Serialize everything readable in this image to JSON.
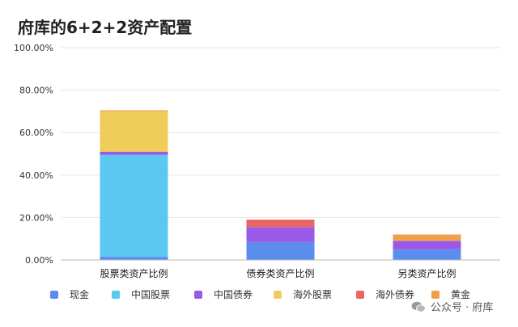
{
  "title": "府库的6+2+2资产配置",
  "watermark": "公众号 · 府库",
  "chart_data": {
    "type": "bar",
    "stacked": true,
    "categories": [
      "股票类资产比例",
      "债券类资产比例",
      "另类资产比例"
    ],
    "series": [
      {
        "name": "现金",
        "color": "#5b8def",
        "values": [
          1.5,
          8.5,
          5.0
        ]
      },
      {
        "name": "中国股票",
        "color": "#5ac8f0",
        "values": [
          48.0,
          0,
          0
        ]
      },
      {
        "name": "中国债券",
        "color": "#9b59e8",
        "values": [
          1.5,
          7.0,
          4.0
        ]
      },
      {
        "name": "海外股票",
        "color": "#f0cc5a",
        "values": [
          19.0,
          0,
          0
        ]
      },
      {
        "name": "海外债券",
        "color": "#e86560",
        "values": [
          0,
          3.5,
          0
        ]
      },
      {
        "name": "黄金",
        "color": "#f0a048",
        "values": [
          0.5,
          0,
          3.0
        ]
      }
    ],
    "ylim": [
      0,
      100
    ],
    "yticks": [
      "0.00%",
      "20.00%",
      "40.00%",
      "60.00%",
      "80.00%",
      "100.00%"
    ],
    "ytick_values": [
      0,
      20,
      40,
      60,
      80,
      100
    ],
    "grid": true,
    "legend_position": "bottom"
  }
}
